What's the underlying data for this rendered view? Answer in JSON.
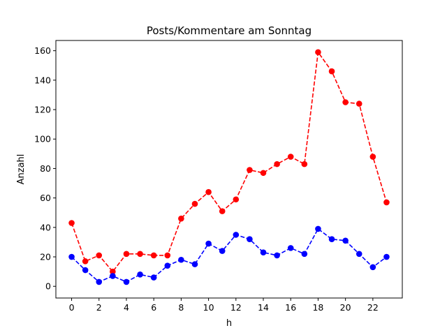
{
  "chart_data": {
    "type": "line",
    "title": "Posts/Kommentare am Sonntag",
    "xlabel": "h",
    "ylabel": "Anzahl",
    "xlim": [
      -1.15,
      24.15
    ],
    "ylim": [
      -7.95,
      166.95
    ],
    "xticks": [
      0,
      2,
      4,
      6,
      8,
      10,
      12,
      14,
      16,
      18,
      20,
      22
    ],
    "yticks": [
      0,
      20,
      40,
      60,
      80,
      100,
      120,
      140,
      160
    ],
    "grid": false,
    "x": [
      0,
      1,
      2,
      3,
      4,
      5,
      6,
      7,
      8,
      9,
      10,
      11,
      12,
      13,
      14,
      15,
      16,
      17,
      18,
      19,
      20,
      21,
      22,
      23
    ],
    "series": [
      {
        "color": "#ff0000",
        "style": "dashed-marker",
        "values": [
          43,
          17,
          21,
          10,
          22,
          22,
          21,
          21,
          46,
          56,
          64,
          51,
          59,
          79,
          77,
          83,
          88,
          83,
          159,
          146,
          125,
          124,
          88,
          57
        ]
      },
      {
        "color": "#0000ff",
        "style": "dashed-marker",
        "values": [
          20,
          11,
          3,
          7,
          3,
          8,
          6,
          14,
          18,
          15,
          29,
          24,
          35,
          32,
          23,
          21,
          26,
          22,
          39,
          32,
          31,
          22,
          13,
          20
        ]
      }
    ]
  }
}
